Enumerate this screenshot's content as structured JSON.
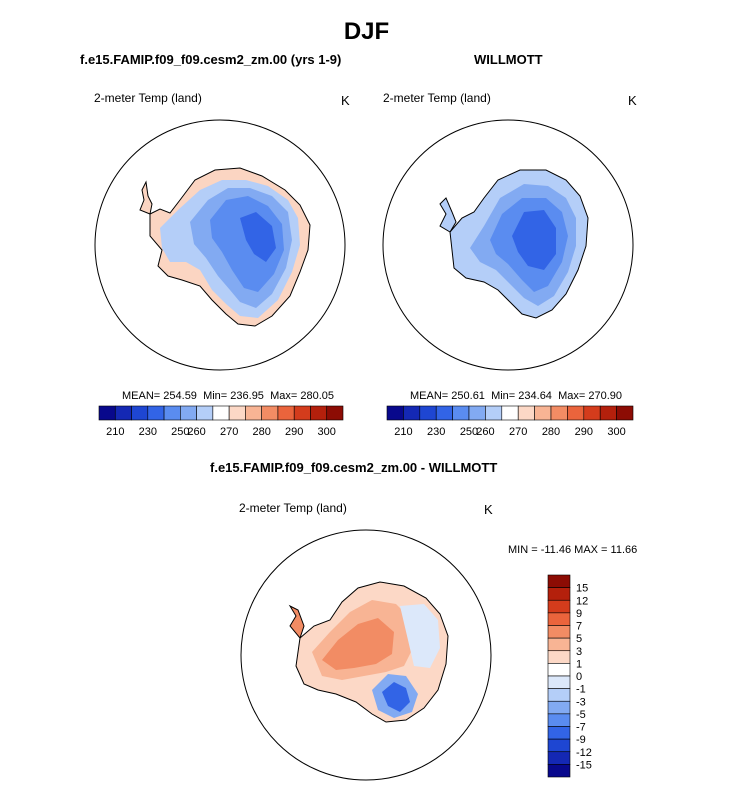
{
  "figure": {
    "title": "DJF"
  },
  "chart_data": [
    {
      "type": "heatmap",
      "title": "f.e15.FAMIP.f09_f09.cesm2_zm.00 (yrs 1-9)",
      "field_label": "2-meter Temp (land)",
      "units": "K",
      "projection": "south polar stereographic",
      "stats": {
        "mean": "254.59",
        "min": "236.95",
        "max": "280.05"
      },
      "stats_labels": {
        "mean": "MEAN=",
        "min": "Min=",
        "max": "Max="
      },
      "colorbar": {
        "orientation": "horizontal",
        "colors": [
          "#08088c",
          "#1428b4",
          "#1e46d2",
          "#3264e6",
          "#5a8cf0",
          "#82aaf2",
          "#b4cef8",
          "#ffffff",
          "#fcd8c6",
          "#f8b494",
          "#f28c64",
          "#ea643c",
          "#d43c1c",
          "#b4200c",
          "#8c0c04"
        ],
        "tick_labels": [
          "210",
          "230",
          "250",
          "260",
          "270",
          "280",
          "290",
          "300"
        ]
      }
    },
    {
      "type": "heatmap",
      "title": "WILLMOTT",
      "field_label": "2-meter Temp (land)",
      "units": "K",
      "projection": "south polar stereographic",
      "stats": {
        "mean": "250.61",
        "min": "234.64",
        "max": "270.90"
      },
      "stats_labels": {
        "mean": "MEAN=",
        "min": "Min=",
        "max": "Max="
      },
      "colorbar": {
        "orientation": "horizontal",
        "colors": [
          "#08088c",
          "#1428b4",
          "#1e46d2",
          "#3264e6",
          "#5a8cf0",
          "#82aaf2",
          "#b4cef8",
          "#ffffff",
          "#fcd8c6",
          "#f8b494",
          "#f28c64",
          "#ea643c",
          "#d43c1c",
          "#b4200c",
          "#8c0c04"
        ],
        "tick_labels": [
          "210",
          "230",
          "250",
          "260",
          "270",
          "280",
          "290",
          "300"
        ]
      }
    },
    {
      "type": "heatmap",
      "title": "f.e15.FAMIP.f09_f09.cesm2_zm.00 - WILLMOTT",
      "field_label": "2-meter Temp (land)",
      "units": "K",
      "projection": "south polar stereographic",
      "minmax": {
        "min_label": "MIN =",
        "min": "-11.46",
        "max_label": "MAX =",
        "max": "11.66"
      },
      "colorbar": {
        "orientation": "vertical",
        "colors": [
          "#8c0c04",
          "#b4200c",
          "#d43c1c",
          "#ea643c",
          "#f28c64",
          "#f8b494",
          "#fcd8c6",
          "#ffffff",
          "#dce8fa",
          "#b4cef8",
          "#82aaf2",
          "#5a8cf0",
          "#3264e6",
          "#1e46d2",
          "#1428b4",
          "#08088c"
        ],
        "tick_labels": [
          "15",
          "12",
          "9",
          "7",
          "5",
          "3",
          "1",
          "0",
          "-1",
          "-3",
          "-5",
          "-7",
          "-9",
          "-12",
          "-15"
        ]
      }
    }
  ]
}
